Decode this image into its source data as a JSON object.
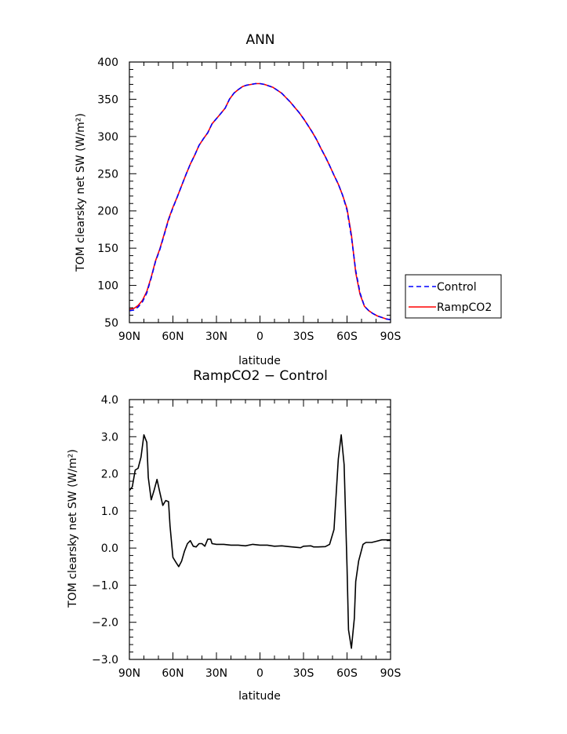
{
  "chart_data": [
    {
      "type": "line",
      "title": "ANN",
      "xlabel": "latitude",
      "ylabel": "TOM clearsky net SW (W/m²)",
      "xlim": [
        90,
        -90
      ],
      "ylim": [
        50,
        400
      ],
      "x_ticks": [
        90,
        60,
        30,
        0,
        -30,
        -60,
        -90
      ],
      "x_tick_labels": [
        "90N",
        "60N",
        "30N",
        "0",
        "30S",
        "60S",
        "90S"
      ],
      "y_ticks": [
        50,
        100,
        150,
        200,
        250,
        300,
        350,
        400
      ],
      "y_tick_labels": [
        "50",
        "100",
        "150",
        "200",
        "250",
        "300",
        "350",
        "400"
      ],
      "legend_position": "right",
      "series": [
        {
          "name": "Control",
          "color": "#0000ff",
          "dashed": true,
          "points": [
            [
              90,
              66
            ],
            [
              87,
              67
            ],
            [
              84,
              71
            ],
            [
              81,
              78
            ],
            [
              78,
              90
            ],
            [
              75,
              110
            ],
            [
              72,
              132
            ],
            [
              69,
              148
            ],
            [
              66,
              168
            ],
            [
              63,
              188
            ],
            [
              60,
              204
            ],
            [
              57,
              219
            ],
            [
              54,
              234
            ],
            [
              51,
              249
            ],
            [
              48,
              263
            ],
            [
              45,
              275
            ],
            [
              42,
              288
            ],
            [
              39,
              297
            ],
            [
              36,
              305
            ],
            [
              33,
              317
            ],
            [
              30,
              324
            ],
            [
              27,
              331
            ],
            [
              24,
              338
            ],
            [
              21,
              350
            ],
            [
              18,
              358
            ],
            [
              15,
              363
            ],
            [
              12,
              367
            ],
            [
              9,
              369
            ],
            [
              6,
              370
            ],
            [
              3,
              371
            ],
            [
              0,
              371
            ],
            [
              -3,
              370
            ],
            [
              -6,
              368
            ],
            [
              -9,
              366
            ],
            [
              -12,
              362
            ],
            [
              -15,
              358
            ],
            [
              -18,
              352
            ],
            [
              -21,
              346
            ],
            [
              -24,
              339
            ],
            [
              -27,
              332
            ],
            [
              -30,
              324
            ],
            [
              -33,
              315
            ],
            [
              -36,
              306
            ],
            [
              -39,
              296
            ],
            [
              -42,
              284
            ],
            [
              -45,
              273
            ],
            [
              -48,
              261
            ],
            [
              -51,
              248
            ],
            [
              -54,
              236
            ],
            [
              -57,
              221
            ],
            [
              -60,
              201
            ],
            [
              -63,
              165
            ],
            [
              -66,
              120
            ],
            [
              -69,
              90
            ],
            [
              -72,
              72
            ],
            [
              -75,
              66
            ],
            [
              -78,
              62
            ],
            [
              -81,
              59
            ],
            [
              -84,
              57
            ],
            [
              -87,
              55
            ],
            [
              -90,
              54
            ]
          ]
        },
        {
          "name": "RampCO2",
          "color": "#ff0000",
          "dashed": false,
          "points": [
            [
              90,
              68
            ],
            [
              87,
              69
            ],
            [
              84,
              73
            ],
            [
              81,
              80
            ],
            [
              78,
              92
            ],
            [
              75,
              111
            ],
            [
              72,
              133
            ],
            [
              69,
              149
            ],
            [
              66,
              169
            ],
            [
              63,
              189
            ],
            [
              60,
              205
            ],
            [
              57,
              219
            ],
            [
              54,
              234
            ],
            [
              51,
              249
            ],
            [
              48,
              263
            ],
            [
              45,
              275
            ],
            [
              42,
              288
            ],
            [
              39,
              297
            ],
            [
              36,
              305
            ],
            [
              33,
              317
            ],
            [
              30,
              324
            ],
            [
              27,
              331
            ],
            [
              24,
              338
            ],
            [
              21,
              350
            ],
            [
              18,
              358
            ],
            [
              15,
              363
            ],
            [
              12,
              367
            ],
            [
              9,
              369
            ],
            [
              6,
              370
            ],
            [
              3,
              371
            ],
            [
              0,
              371
            ],
            [
              -3,
              370
            ],
            [
              -6,
              368
            ],
            [
              -9,
              366
            ],
            [
              -12,
              362
            ],
            [
              -15,
              358
            ],
            [
              -18,
              352
            ],
            [
              -21,
              346
            ],
            [
              -24,
              339
            ],
            [
              -27,
              332
            ],
            [
              -30,
              324
            ],
            [
              -33,
              315
            ],
            [
              -36,
              306
            ],
            [
              -39,
              296
            ],
            [
              -42,
              284
            ],
            [
              -45,
              273
            ],
            [
              -48,
              261
            ],
            [
              -51,
              248
            ],
            [
              -54,
              236
            ],
            [
              -57,
              221
            ],
            [
              -60,
              203
            ],
            [
              -63,
              168
            ],
            [
              -66,
              117
            ],
            [
              -69,
              88
            ],
            [
              -72,
              72
            ],
            [
              -75,
              66
            ],
            [
              -78,
              62
            ],
            [
              -81,
              59
            ],
            [
              -84,
              57
            ],
            [
              -87,
              55
            ],
            [
              -90,
              54
            ]
          ]
        }
      ]
    },
    {
      "type": "line",
      "title": "RampCO2 − Control",
      "xlabel": "latitude",
      "ylabel": "TOM clearsky net SW (W/m²)",
      "xlim": [
        90,
        -90
      ],
      "ylim": [
        -3.0,
        4.0
      ],
      "x_ticks": [
        90,
        60,
        30,
        0,
        -30,
        -60,
        -90
      ],
      "x_tick_labels": [
        "90N",
        "60N",
        "30N",
        "0",
        "30S",
        "60S",
        "90S"
      ],
      "y_ticks": [
        -3,
        -2,
        -1,
        0,
        1,
        2,
        3,
        4
      ],
      "y_tick_labels": [
        "−3.0",
        "−2.0",
        "−1.0",
        "0.0",
        "1.0",
        "2.0",
        "3.0",
        "4.0"
      ],
      "series": [
        {
          "name": "",
          "color": "#000000",
          "dashed": false,
          "points": [
            [
              90,
              1.55
            ],
            [
              88,
              1.65
            ],
            [
              86,
              2.1
            ],
            [
              84,
              2.15
            ],
            [
              82,
              2.45
            ],
            [
              80,
              3.05
            ],
            [
              78,
              2.85
            ],
            [
              77,
              1.9
            ],
            [
              75,
              1.3
            ],
            [
              73,
              1.55
            ],
            [
              71,
              1.85
            ],
            [
              69,
              1.5
            ],
            [
              67,
              1.15
            ],
            [
              65,
              1.28
            ],
            [
              63,
              1.25
            ],
            [
              62,
              0.6
            ],
            [
              60,
              -0.25
            ],
            [
              58,
              -0.38
            ],
            [
              56,
              -0.5
            ],
            [
              54,
              -0.35
            ],
            [
              52,
              -0.08
            ],
            [
              50,
              0.12
            ],
            [
              48,
              0.2
            ],
            [
              46,
              0.05
            ],
            [
              44,
              0.03
            ],
            [
              42,
              0.12
            ],
            [
              40,
              0.12
            ],
            [
              38,
              0.05
            ],
            [
              36,
              0.24
            ],
            [
              34,
              0.24
            ],
            [
              33,
              0.12
            ],
            [
              30,
              0.1
            ],
            [
              25,
              0.1
            ],
            [
              20,
              0.08
            ],
            [
              15,
              0.08
            ],
            [
              10,
              0.06
            ],
            [
              5,
              0.1
            ],
            [
              0,
              0.08
            ],
            [
              -5,
              0.08
            ],
            [
              -10,
              0.05
            ],
            [
              -15,
              0.06
            ],
            [
              -20,
              0.04
            ],
            [
              -25,
              0.02
            ],
            [
              -28,
              0.01
            ],
            [
              -30,
              0.05
            ],
            [
              -35,
              0.06
            ],
            [
              -37,
              0.03
            ],
            [
              -40,
              0.03
            ],
            [
              -45,
              0.04
            ],
            [
              -48,
              0.1
            ],
            [
              -51,
              0.5
            ],
            [
              -54,
              2.4
            ],
            [
              -56,
              3.05
            ],
            [
              -58,
              2.25
            ],
            [
              -60,
              -0.5
            ],
            [
              -61,
              -2.2
            ],
            [
              -63,
              -2.7
            ],
            [
              -65,
              -1.9
            ],
            [
              -66,
              -0.9
            ],
            [
              -68,
              -0.35
            ],
            [
              -71,
              0.1
            ],
            [
              -73,
              0.15
            ],
            [
              -77,
              0.15
            ],
            [
              -80,
              0.18
            ],
            [
              -84,
              0.22
            ],
            [
              -90,
              0.22
            ]
          ]
        }
      ]
    }
  ]
}
